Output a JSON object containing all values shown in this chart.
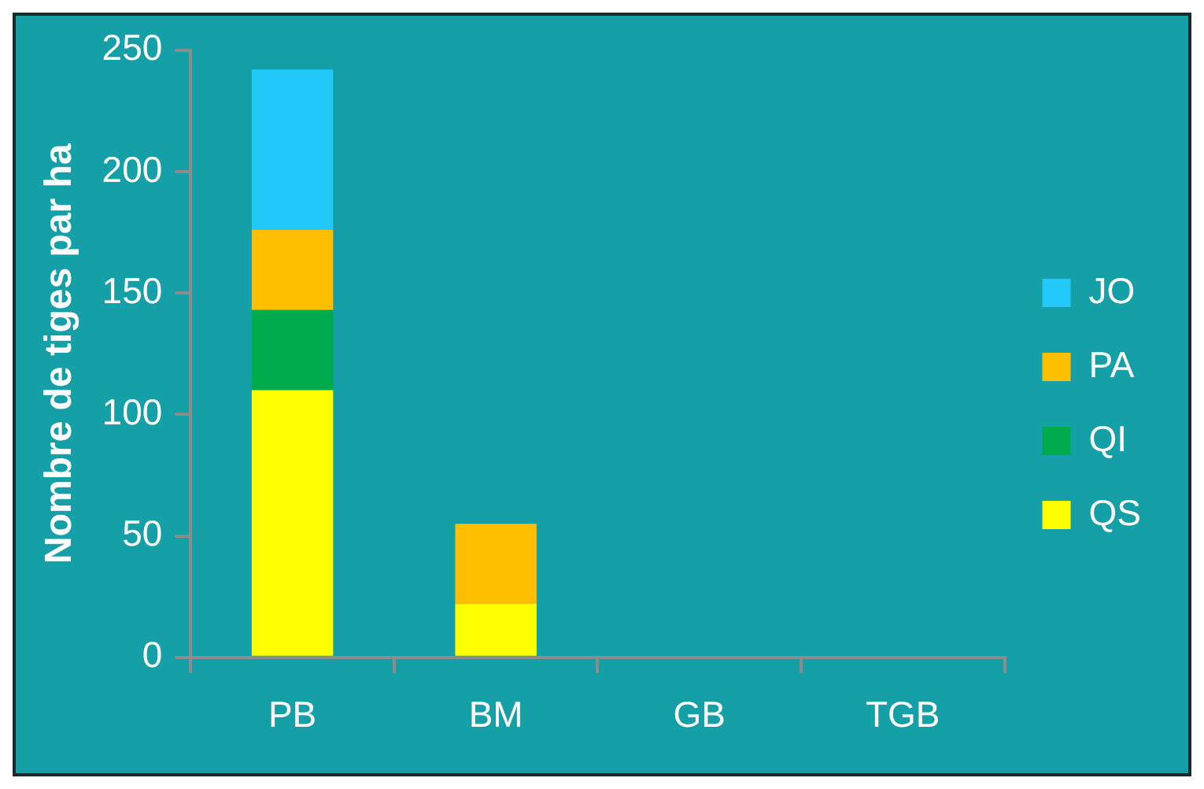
{
  "chart_data": {
    "type": "bar",
    "ylabel": "Nombre de tiges par ha",
    "categories": [
      "PB",
      "BM",
      "GB",
      "TGB"
    ],
    "stacked": true,
    "series": [
      {
        "name": "QS",
        "color": "#ffff00",
        "values": [
          110,
          22,
          0,
          0
        ]
      },
      {
        "name": "QI",
        "color": "#00ab4e",
        "values": [
          33,
          0,
          0,
          0
        ]
      },
      {
        "name": "PA",
        "color": "#ffbf00",
        "values": [
          33,
          33,
          0,
          0
        ]
      },
      {
        "name": "JO",
        "color": "#22c8f8",
        "values": [
          66,
          0,
          0,
          0
        ]
      }
    ],
    "ylim": [
      0,
      250
    ],
    "yticks": [
      0,
      50,
      100,
      150,
      200,
      250
    ],
    "grid": false,
    "legend": "right"
  }
}
